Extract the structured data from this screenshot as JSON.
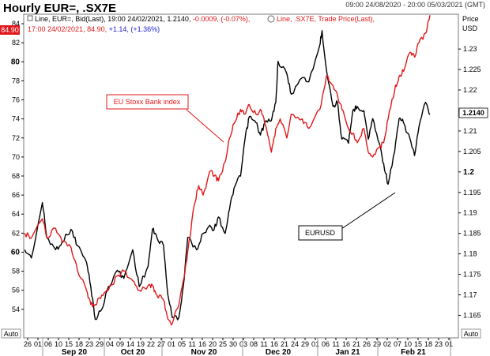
{
  "header": {
    "title": "Hourly EUR=, .SX7E",
    "date_range": "09:00 24/08/2020 - 20:00 05/03/2021 (GMT)",
    "legend_line1_black": "Line, EUR=, Bid(Last), 19:00 24/02/2021, 1.2140, ",
    "legend_line1_change": "-0.0009, (-0.07%),",
    "legend_line1_red": "Line, .SX7E, Trade Price(Last),",
    "legend_line2_red": "17:00 24/02/2021, 84.90, ",
    "legend_line2_change": "+1.14, (+1.36%)",
    "right_axis_title_1": "Price",
    "right_axis_title_2": "USD",
    "auto_left": "Auto",
    "auto_right": "Auto"
  },
  "badges": {
    "left_value": "84.90",
    "right_value": "1.2140"
  },
  "annotations": {
    "red_box": "EU Stoxx Bank index",
    "black_box": "EURUSD"
  },
  "colors": {
    "eurusd": "#000000",
    "sx7e": "#e0181b",
    "change_negative": "#e0181b",
    "change_positive": "#1a1ad6",
    "badge_red": "#e0181b"
  },
  "chart_data": {
    "type": "line",
    "title": "Hourly EUR=, .SX7E",
    "x_tick_labels": [
      "26",
      "01",
      "06",
      "10",
      "15",
      "18",
      "23",
      "29",
      "04",
      "09",
      "14",
      "19",
      "22",
      "27",
      "01",
      "05",
      "11",
      "16",
      "20",
      "25",
      "30",
      "03",
      "08",
      "11",
      "16",
      "21",
      "24",
      "29",
      "01",
      "06",
      "11",
      "16",
      "21",
      "26",
      "29",
      "02",
      "07",
      "10",
      "15",
      "18",
      "23",
      "01"
    ],
    "x_month_labels": [
      "Sep 20",
      "Oct 20",
      "Nov 20",
      "Dec 20",
      "Jan 21",
      "Feb 21"
    ],
    "left_axis": {
      "ylim": [
        51,
        85
      ],
      "tick_labels": [
        "54",
        "56",
        "58",
        "60",
        "62",
        "64",
        "66",
        "68",
        "70",
        "72",
        "74",
        "76",
        "78",
        "80",
        "82",
        "84"
      ],
      "bold_ticks": [
        "60",
        "80"
      ]
    },
    "right_axis": {
      "ylim": [
        1.1595,
        1.2385
      ],
      "tick_labels": [
        "1.165",
        "1.17",
        "1.175",
        "1.18",
        "1.185",
        "1.19",
        "1.195",
        "1.2",
        "1.205",
        "1.21",
        "1.215",
        "1.22",
        "1.225",
        "1.23"
      ],
      "bold_ticks": [
        "1.2"
      ]
    },
    "series": [
      {
        "axis": "right",
        "values": [
          [
            "2020-08-24",
            1.181
          ],
          [
            "2020-08-27",
            1.179
          ],
          [
            "2020-09-01",
            1.1925
          ],
          [
            "2020-09-03",
            1.184
          ],
          [
            "2020-09-07",
            1.181
          ],
          [
            "2020-09-10",
            1.183
          ],
          [
            "2020-09-14",
            1.186
          ],
          [
            "2020-09-17",
            1.182
          ],
          [
            "2020-09-21",
            1.178
          ],
          [
            "2020-09-23",
            1.172
          ],
          [
            "2020-09-25",
            1.164
          ],
          [
            "2020-09-28",
            1.1665
          ],
          [
            "2020-10-01",
            1.172
          ],
          [
            "2020-10-05",
            1.176
          ],
          [
            "2020-10-08",
            1.174
          ],
          [
            "2020-10-12",
            1.181
          ],
          [
            "2020-10-15",
            1.172
          ],
          [
            "2020-10-19",
            1.177
          ],
          [
            "2020-10-21",
            1.186
          ],
          [
            "2020-10-23",
            1.184
          ],
          [
            "2020-10-26",
            1.182
          ],
          [
            "2020-10-28",
            1.17
          ],
          [
            "2020-10-30",
            1.1645
          ],
          [
            "2020-11-02",
            1.1645
          ],
          [
            "2020-11-04",
            1.172
          ],
          [
            "2020-11-06",
            1.184
          ],
          [
            "2020-11-10",
            1.181
          ],
          [
            "2020-11-13",
            1.185
          ],
          [
            "2020-11-16",
            1.187
          ],
          [
            "2020-11-18",
            1.186
          ],
          [
            "2020-11-20",
            1.189
          ],
          [
            "2020-11-23",
            1.185
          ],
          [
            "2020-11-25",
            1.191
          ],
          [
            "2020-11-27",
            1.196
          ],
          [
            "2020-11-30",
            1.199
          ],
          [
            "2020-12-02",
            1.208
          ],
          [
            "2020-12-04",
            1.2135
          ],
          [
            "2020-12-07",
            1.212
          ],
          [
            "2020-12-09",
            1.209
          ],
          [
            "2020-12-11",
            1.212
          ],
          [
            "2020-12-14",
            1.2125
          ],
          [
            "2020-12-16",
            1.217
          ],
          [
            "2020-12-17",
            1.227
          ],
          [
            "2020-12-21",
            1.224
          ],
          [
            "2020-12-23",
            1.219
          ],
          [
            "2020-12-28",
            1.223
          ],
          [
            "2020-12-31",
            1.222
          ],
          [
            "2021-01-05",
            1.231
          ],
          [
            "2021-01-06",
            1.2345
          ],
          [
            "2021-01-08",
            1.225
          ],
          [
            "2021-01-11",
            1.216
          ],
          [
            "2021-01-13",
            1.217
          ],
          [
            "2021-01-15",
            1.208
          ],
          [
            "2021-01-18",
            1.207
          ],
          [
            "2021-01-20",
            1.215
          ],
          [
            "2021-01-22",
            1.216
          ],
          [
            "2021-01-25",
            1.215
          ],
          [
            "2021-01-27",
            1.208
          ],
          [
            "2021-01-29",
            1.213
          ],
          [
            "2021-02-01",
            1.207
          ],
          [
            "2021-02-03",
            1.202
          ],
          [
            "2021-02-05",
            1.197
          ],
          [
            "2021-02-08",
            1.205
          ],
          [
            "2021-02-10",
            1.213
          ],
          [
            "2021-02-12",
            1.212
          ],
          [
            "2021-02-15",
            1.208
          ],
          [
            "2021-02-17",
            1.204
          ],
          [
            "2021-02-19",
            1.211
          ],
          [
            "2021-02-22",
            1.217
          ],
          [
            "2021-02-24",
            1.214
          ]
        ]
      },
      {
        "axis": "left",
        "values": [
          [
            "2020-08-24",
            62
          ],
          [
            "2020-08-27",
            61.5
          ],
          [
            "2020-09-01",
            63.5
          ],
          [
            "2020-09-03",
            61.5
          ],
          [
            "2020-09-07",
            62.5
          ],
          [
            "2020-09-10",
            61
          ],
          [
            "2020-09-14",
            60.5
          ],
          [
            "2020-09-17",
            58
          ],
          [
            "2020-09-21",
            56
          ],
          [
            "2020-09-23",
            54.5
          ],
          [
            "2020-09-25",
            54.5
          ],
          [
            "2020-09-28",
            55.5
          ],
          [
            "2020-10-01",
            56
          ],
          [
            "2020-10-05",
            57.5
          ],
          [
            "2020-10-08",
            58
          ],
          [
            "2020-10-12",
            57
          ],
          [
            "2020-10-15",
            56
          ],
          [
            "2020-10-19",
            56.5
          ],
          [
            "2020-10-21",
            56.5
          ],
          [
            "2020-10-23",
            55.5
          ],
          [
            "2020-10-26",
            55
          ],
          [
            "2020-10-28",
            53
          ],
          [
            "2020-10-30",
            52.5
          ],
          [
            "2020-11-02",
            54.5
          ],
          [
            "2020-11-04",
            57
          ],
          [
            "2020-11-06",
            60
          ],
          [
            "2020-11-09",
            65
          ],
          [
            "2020-11-11",
            67
          ],
          [
            "2020-11-13",
            66
          ],
          [
            "2020-11-16",
            68.5
          ],
          [
            "2020-11-18",
            68
          ],
          [
            "2020-11-20",
            67.5
          ],
          [
            "2020-11-23",
            69.5
          ],
          [
            "2020-11-25",
            72
          ],
          [
            "2020-11-27",
            73.5
          ],
          [
            "2020-11-30",
            75
          ],
          [
            "2020-12-02",
            74.5
          ],
          [
            "2020-12-04",
            75.5
          ],
          [
            "2020-12-07",
            74.5
          ],
          [
            "2020-12-09",
            75
          ],
          [
            "2020-12-11",
            73.5
          ],
          [
            "2020-12-14",
            70.5
          ],
          [
            "2020-12-16",
            73
          ],
          [
            "2020-12-18",
            74
          ],
          [
            "2020-12-21",
            72
          ],
          [
            "2020-12-23",
            74.5
          ],
          [
            "2020-12-28",
            74
          ],
          [
            "2020-12-31",
            73
          ],
          [
            "2021-01-05",
            75
          ],
          [
            "2021-01-08",
            78.5
          ],
          [
            "2021-01-11",
            77.5
          ],
          [
            "2021-01-13",
            76.5
          ],
          [
            "2021-01-15",
            75
          ],
          [
            "2021-01-18",
            73
          ],
          [
            "2021-01-20",
            72.5
          ],
          [
            "2021-01-22",
            71.5
          ],
          [
            "2021-01-25",
            73
          ],
          [
            "2021-01-27",
            70.5
          ],
          [
            "2021-01-29",
            70
          ],
          [
            "2021-02-01",
            71
          ],
          [
            "2021-02-03",
            71.5
          ],
          [
            "2021-02-05",
            74
          ],
          [
            "2021-02-08",
            77
          ],
          [
            "2021-02-10",
            78.5
          ],
          [
            "2021-02-12",
            79
          ],
          [
            "2021-02-15",
            81
          ],
          [
            "2021-02-17",
            80.5
          ],
          [
            "2021-02-19",
            82
          ],
          [
            "2021-02-22",
            83
          ],
          [
            "2021-02-24",
            84.9
          ]
        ]
      }
    ]
  }
}
